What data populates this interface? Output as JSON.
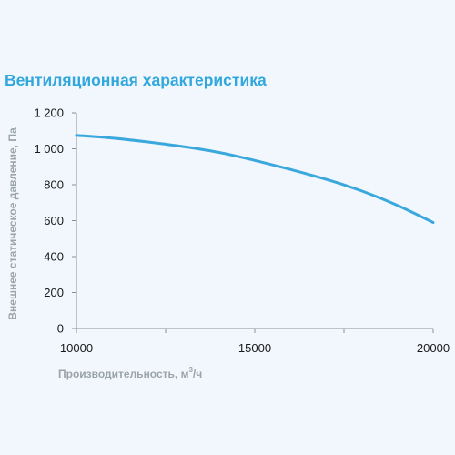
{
  "chart_data": {
    "type": "line",
    "title": "Вентиляционная характеристика",
    "xlabel": "Производительность, м³/ч",
    "xlabel_parts": {
      "text": "Производительность, м",
      "sup": "3",
      "tail": "/ч"
    },
    "ylabel": "Внешнее статическое давление, Па",
    "xlim": [
      10000,
      20000
    ],
    "ylim": [
      0,
      1200
    ],
    "x_ticks": [
      10000,
      12500,
      15000,
      17500,
      20000
    ],
    "x_tick_labels": [
      "10000",
      "",
      "15000",
      "",
      "20000"
    ],
    "y_ticks": [
      0,
      200,
      400,
      600,
      800,
      1000,
      1200
    ],
    "y_tick_labels": [
      "0",
      "200",
      "400",
      "600",
      "800",
      "1 000",
      "1 200"
    ],
    "grid": false,
    "series": [
      {
        "color": "#3aa8dc",
        "x": [
          10000,
          11000,
          12000,
          13000,
          14000,
          15000,
          16000,
          17000,
          18000,
          19000,
          20000
        ],
        "y": [
          1075,
          1060,
          1038,
          1012,
          980,
          935,
          885,
          830,
          765,
          685,
          590
        ]
      }
    ]
  }
}
